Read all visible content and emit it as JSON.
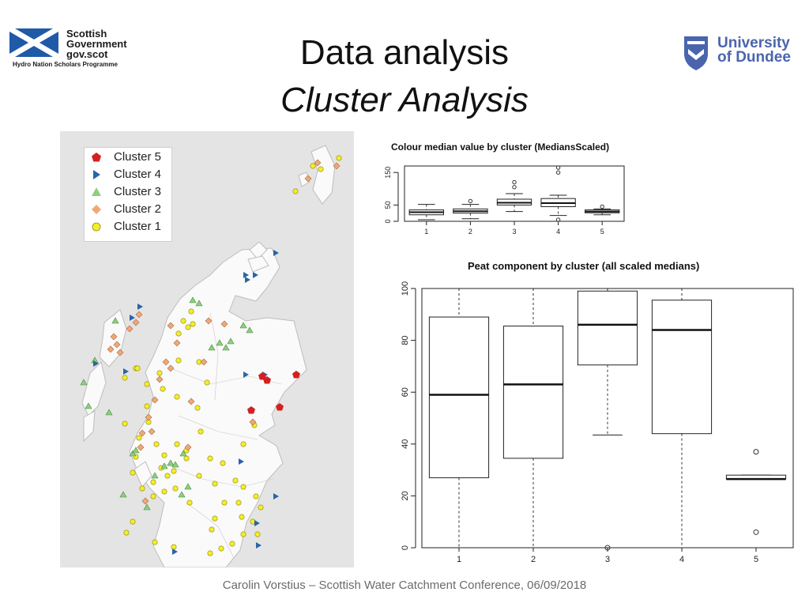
{
  "header": {
    "gov_logo": {
      "lines": [
        "Scottish",
        "Government",
        "gov.scot"
      ],
      "programme": "Hydro Nation Scholars Programme"
    },
    "university_logo": {
      "lines": [
        "University",
        "of Dundee"
      ]
    },
    "title": "Data analysis",
    "subtitle": "Cluster Analysis"
  },
  "map": {
    "legend": [
      {
        "label": "Cluster 5",
        "icon": "pentagon-icon",
        "color": "#d42020"
      },
      {
        "label": "Cluster 4",
        "icon": "triangle-right-icon",
        "color": "#2a64a8"
      },
      {
        "label": "Cluster 3",
        "icon": "triangle-up-icon",
        "color": "#8ccf7e"
      },
      {
        "label": "Cluster 2",
        "icon": "diamond-icon",
        "color": "#f0a878"
      },
      {
        "label": "Cluster 1",
        "icon": "circle-icon",
        "color": "#f4ee26"
      }
    ]
  },
  "chart_data": [
    {
      "type": "box",
      "title": "Colour median value by cluster (MediansScaled)",
      "categories": [
        "1",
        "2",
        "3",
        "4",
        "5"
      ],
      "yticks": [
        0,
        50,
        150
      ],
      "ylim": [
        0,
        170
      ],
      "boxes": [
        {
          "min": 5,
          "q1": 20,
          "median": 28,
          "q3": 35,
          "max": 52,
          "outliers": []
        },
        {
          "min": 8,
          "q1": 25,
          "median": 31,
          "q3": 38,
          "max": 52,
          "outliers": [
            62
          ]
        },
        {
          "min": 30,
          "q1": 50,
          "median": 57,
          "q3": 68,
          "max": 85,
          "outliers": [
            105,
            120
          ]
        },
        {
          "min": 18,
          "q1": 45,
          "median": 56,
          "q3": 70,
          "max": 80,
          "outliers": [
            5,
            150,
            165
          ]
        },
        {
          "min": 20,
          "q1": 26,
          "median": 30,
          "q3": 35,
          "max": 38,
          "outliers": [
            45
          ]
        }
      ]
    },
    {
      "type": "box",
      "title": "Peat component by cluster (all scaled medians)",
      "categories": [
        "1",
        "2",
        "3",
        "4",
        "5"
      ],
      "yticks": [
        0,
        20,
        40,
        60,
        80,
        100
      ],
      "ylim": [
        0,
        100
      ],
      "boxes": [
        {
          "min": 0,
          "q1": 27,
          "median": 59,
          "q3": 89,
          "max": 100,
          "outliers": []
        },
        {
          "min": 0,
          "q1": 34.5,
          "median": 63,
          "q3": 85.5,
          "max": 100,
          "outliers": []
        },
        {
          "min": 43.5,
          "q1": 70.5,
          "median": 86,
          "q3": 99,
          "max": 100,
          "outliers": [
            0
          ]
        },
        {
          "min": 0,
          "q1": 44,
          "median": 84,
          "q3": 95.5,
          "max": 100,
          "outliers": []
        },
        {
          "min": 26.5,
          "q1": 26.5,
          "median": 26.5,
          "q3": 28,
          "max": 28,
          "outliers": [
            37,
            6
          ]
        }
      ]
    }
  ],
  "footer": "Carolin Vorstius – Scottish Water Catchment Conference, 06/09/2018"
}
